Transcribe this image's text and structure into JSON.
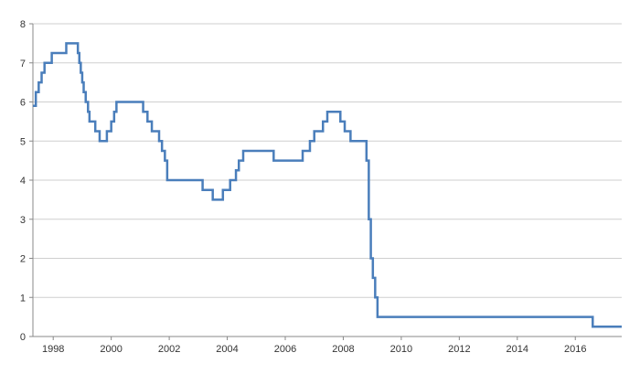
{
  "chart_data": {
    "type": "line",
    "title": "",
    "xlabel": "",
    "ylabel": "",
    "xlim": [
      1997.3,
      2017.6
    ],
    "ylim": [
      0,
      8
    ],
    "grid": "horizontal",
    "legend": "none",
    "x_ticks": [
      {
        "value": 1998,
        "label": "1998"
      },
      {
        "value": 2000,
        "label": "2000"
      },
      {
        "value": 2002,
        "label": "2002"
      },
      {
        "value": 2004,
        "label": "2004"
      },
      {
        "value": 2006,
        "label": "2006"
      },
      {
        "value": 2008,
        "label": "2008"
      },
      {
        "value": 2010,
        "label": "2010"
      },
      {
        "value": 2012,
        "label": "2012"
      },
      {
        "value": 2014,
        "label": "2014"
      },
      {
        "value": 2016,
        "label": "2016"
      }
    ],
    "y_ticks": [
      {
        "value": 0,
        "label": "0"
      },
      {
        "value": 1,
        "label": "1"
      },
      {
        "value": 2,
        "label": "2"
      },
      {
        "value": 3,
        "label": "3"
      },
      {
        "value": 4,
        "label": "4"
      },
      {
        "value": 5,
        "label": "5"
      },
      {
        "value": 6,
        "label": "6"
      },
      {
        "value": 7,
        "label": "7"
      },
      {
        "value": 8,
        "label": "8"
      }
    ],
    "series": [
      {
        "color": "#4a7ebb",
        "step": true,
        "points": [
          [
            1997.3,
            5.9
          ],
          [
            1997.4,
            6.25
          ],
          [
            1997.5,
            6.5
          ],
          [
            1997.6,
            6.75
          ],
          [
            1997.7,
            7.0
          ],
          [
            1997.95,
            7.25
          ],
          [
            1998.45,
            7.5
          ],
          [
            1998.85,
            7.25
          ],
          [
            1998.9,
            7.0
          ],
          [
            1998.95,
            6.75
          ],
          [
            1999.0,
            6.5
          ],
          [
            1999.05,
            6.25
          ],
          [
            1999.12,
            6.0
          ],
          [
            1999.2,
            5.75
          ],
          [
            1999.25,
            5.5
          ],
          [
            1999.45,
            5.25
          ],
          [
            1999.6,
            5.0
          ],
          [
            1999.85,
            5.25
          ],
          [
            2000.0,
            5.5
          ],
          [
            2000.1,
            5.75
          ],
          [
            2000.18,
            6.0
          ],
          [
            2001.1,
            5.75
          ],
          [
            2001.25,
            5.5
          ],
          [
            2001.4,
            5.25
          ],
          [
            2001.65,
            5.0
          ],
          [
            2001.75,
            4.75
          ],
          [
            2001.85,
            4.5
          ],
          [
            2001.93,
            4.0
          ],
          [
            2003.15,
            3.75
          ],
          [
            2003.5,
            3.5
          ],
          [
            2003.85,
            3.75
          ],
          [
            2004.1,
            4.0
          ],
          [
            2004.3,
            4.25
          ],
          [
            2004.4,
            4.5
          ],
          [
            2004.55,
            4.75
          ],
          [
            2005.6,
            4.5
          ],
          [
            2006.6,
            4.75
          ],
          [
            2006.85,
            5.0
          ],
          [
            2007.0,
            5.25
          ],
          [
            2007.3,
            5.5
          ],
          [
            2007.45,
            5.75
          ],
          [
            2007.9,
            5.5
          ],
          [
            2008.05,
            5.25
          ],
          [
            2008.25,
            5.0
          ],
          [
            2008.8,
            4.5
          ],
          [
            2008.88,
            3.0
          ],
          [
            2008.95,
            2.0
          ],
          [
            2009.02,
            1.5
          ],
          [
            2009.1,
            1.0
          ],
          [
            2009.18,
            0.5
          ],
          [
            2016.6,
            0.25
          ],
          [
            2017.6,
            0.25
          ]
        ]
      }
    ]
  }
}
